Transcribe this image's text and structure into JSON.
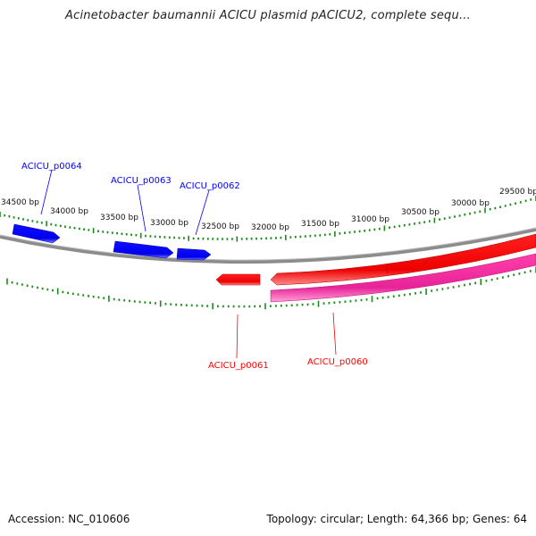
{
  "title": "Acinetobacter baumannii ACICU plasmid pACICU2, complete sequ...",
  "footer": {
    "accession": "Accession: NC_010606",
    "summary": "Topology: circular; Length: 64,366 bp; Genes: 64"
  },
  "tick_labels": [
    "34500 bp",
    "34000 bp",
    "33500 bp",
    "33000 bp",
    "32500 bp",
    "32000 bp",
    "31500 bp",
    "31000 bp",
    "30500 bp",
    "30000 bp",
    "29500 bp"
  ],
  "genes": [
    {
      "name": "ACICU_p0064",
      "strand": "forward",
      "color": "#0000ff"
    },
    {
      "name": "ACICU_p0063",
      "strand": "forward",
      "color": "#0000ff"
    },
    {
      "name": "ACICU_p0062",
      "strand": "forward",
      "color": "#0000ff"
    },
    {
      "name": "ACICU_p0061",
      "strand": "reverse",
      "color": "#ff0000"
    },
    {
      "name": "ACICU_p0060",
      "strand": "reverse",
      "color": "#ff0000"
    }
  ],
  "colors": {
    "forward_gene": "#0000ff",
    "reverse_gene": "#ff0000",
    "reverse_gene_secondary": "#e8239a",
    "backbone": "#8c8c8c",
    "ticks": "#1a8a1a"
  }
}
